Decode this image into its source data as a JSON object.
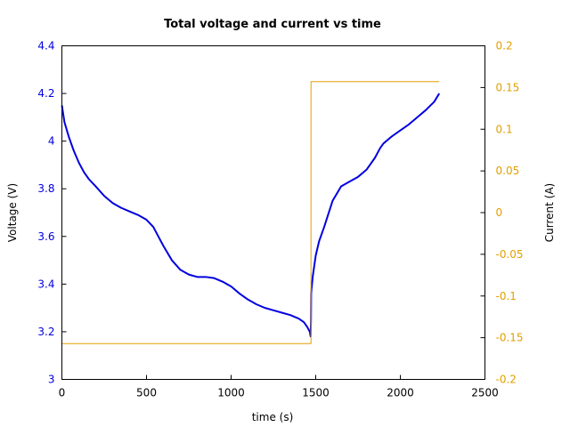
{
  "chart_data": {
    "type": "line",
    "title": "Total voltage and current vs time",
    "xlabel": "time (s)",
    "ylabel": "Voltage (V)",
    "y2label": "Current (A)",
    "xlim": [
      0,
      2500
    ],
    "ylim": [
      3,
      4.4
    ],
    "y2lim": [
      -0.2,
      0.2
    ],
    "xticks": [
      "0",
      "500",
      "1000",
      "1500",
      "2000",
      "2500"
    ],
    "yticks": [
      "3",
      "3.2",
      "3.4",
      "3.6",
      "3.8",
      "4",
      "4.2",
      "4.4"
    ],
    "y2ticks": [
      "-0.2",
      "-0.15",
      "-0.1",
      "-0.05",
      "0",
      "0.05",
      "0.1",
      "0.15",
      "0.2"
    ],
    "grid": false,
    "colors": {
      "voltage": "#0000e0",
      "current": "#e0a000",
      "left_axis": "#0000e0",
      "right_axis": "#e0a000"
    },
    "series": [
      {
        "axis": "left",
        "x": [
          0,
          15,
          40,
          70,
          100,
          130,
          160,
          200,
          250,
          300,
          350,
          400,
          450,
          500,
          540,
          570,
          600,
          650,
          700,
          750,
          800,
          850,
          900,
          950,
          1000,
          1050,
          1100,
          1150,
          1200,
          1250,
          1300,
          1350,
          1400,
          1430,
          1450,
          1465,
          1470,
          1472,
          1473,
          1475,
          1478,
          1482,
          1490,
          1500,
          1520,
          1550,
          1600,
          1650,
          1700,
          1750,
          1800,
          1850,
          1880,
          1900,
          1950,
          2000,
          2050,
          2100,
          2150,
          2200,
          2230
        ],
        "y": [
          4.15,
          4.08,
          4.02,
          3.96,
          3.91,
          3.87,
          3.84,
          3.81,
          3.77,
          3.74,
          3.72,
          3.705,
          3.69,
          3.67,
          3.64,
          3.6,
          3.56,
          3.5,
          3.46,
          3.44,
          3.43,
          3.43,
          3.425,
          3.41,
          3.39,
          3.36,
          3.335,
          3.315,
          3.3,
          3.29,
          3.28,
          3.27,
          3.255,
          3.24,
          3.22,
          3.2,
          3.18,
          3.25,
          3.36,
          3.38,
          3.4,
          3.43,
          3.47,
          3.52,
          3.58,
          3.64,
          3.75,
          3.81,
          3.83,
          3.85,
          3.88,
          3.93,
          3.97,
          3.99,
          4.02,
          4.045,
          4.07,
          4.1,
          4.13,
          4.165,
          4.2
        ]
      },
      {
        "axis": "right",
        "x": [
          0,
          1470,
          1470,
          1472,
          1472,
          2230
        ],
        "y": [
          -0.157,
          -0.157,
          -0.157,
          -0.157,
          0.157,
          0.157
        ]
      }
    ]
  }
}
